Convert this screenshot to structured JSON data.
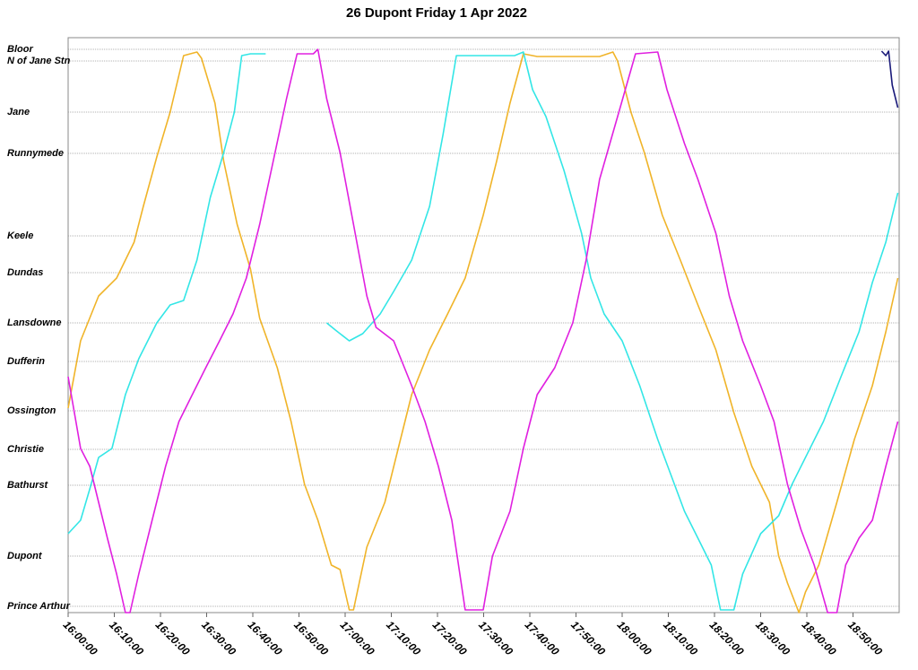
{
  "chart_data": {
    "type": "line",
    "title": "26 Dupont Friday 1 Apr 2022",
    "xlim": [
      0,
      180
    ],
    "xticks": [
      {
        "value": 0,
        "label": "16:00:00"
      },
      {
        "value": 10,
        "label": "16:10:00"
      },
      {
        "value": 20,
        "label": "16:20:00"
      },
      {
        "value": 30,
        "label": "16:30:00"
      },
      {
        "value": 40,
        "label": "16:40:00"
      },
      {
        "value": 50,
        "label": "16:50:00"
      },
      {
        "value": 60,
        "label": "17:00:00"
      },
      {
        "value": 70,
        "label": "17:10:00"
      },
      {
        "value": 80,
        "label": "17:20:00"
      },
      {
        "value": 90,
        "label": "17:30:00"
      },
      {
        "value": 100,
        "label": "17:40:00"
      },
      {
        "value": 110,
        "label": "17:50:00"
      },
      {
        "value": 120,
        "label": "18:00:00"
      },
      {
        "value": 130,
        "label": "18:10:00"
      },
      {
        "value": 140,
        "label": "18:20:00"
      },
      {
        "value": 150,
        "label": "18:30:00"
      },
      {
        "value": 160,
        "label": "18:40:00"
      },
      {
        "value": 170,
        "label": "18:50:00"
      }
    ],
    "ylim": [
      -7,
      634
    ],
    "yticks": [
      {
        "value": 621,
        "label": "Bloor"
      },
      {
        "value": 608,
        "label": "N of Jane Stn"
      },
      {
        "value": 551,
        "label": "Jane"
      },
      {
        "value": 505,
        "label": "Runnymede"
      },
      {
        "value": 413,
        "label": "Keele"
      },
      {
        "value": 372,
        "label": "Dundas"
      },
      {
        "value": 316,
        "label": "Lansdowne"
      },
      {
        "value": 273,
        "label": "Dufferin"
      },
      {
        "value": 218,
        "label": "Ossington"
      },
      {
        "value": 175,
        "label": "Christie"
      },
      {
        "value": 135,
        "label": "Bathurst"
      },
      {
        "value": 56,
        "label": "Dupont"
      },
      {
        "value": 0,
        "label": "Prince Arthur"
      }
    ],
    "grid": true,
    "series": [
      {
        "color": "#f0b429",
        "x": [
          0,
          2.7,
          6.6,
          10.5,
          14.3,
          16.3,
          19.2,
          22.1,
          25,
          27.9,
          28.9,
          31.8,
          33.7,
          36.6,
          39.5,
          41.5,
          45.3,
          48.3,
          51.2,
          54.1,
          57,
          58.9,
          60.9,
          61.8,
          64.7,
          68.6,
          71.5,
          74.4,
          78.3,
          82.2,
          86,
          89.9,
          92.8,
          95.7,
          98.6,
          101.6,
          115.1,
          118,
          119,
          121.9,
          124.8,
          128.7,
          132.6,
          136.4,
          140.3,
          144.2,
          148.1,
          151.9,
          153.9,
          155.8,
          158.3,
          159.7,
          162.6,
          166.5,
          170.3,
          174.2,
          177.1,
          179.7
        ],
        "values": [
          221,
          296,
          346,
          366,
          406,
          446,
          501,
          551,
          614,
          618,
          611,
          561,
          496,
          426,
          376,
          321,
          266,
          206,
          136,
          96,
          46,
          41,
          -4,
          -4,
          66,
          116,
          176,
          236,
          286,
          326,
          366,
          436,
          496,
          561,
          616,
          613,
          613,
          618,
          608,
          551,
          506,
          436,
          386,
          336,
          286,
          216,
          156,
          116,
          56,
          26,
          -7,
          16,
          46,
          116,
          186,
          246,
          306,
          366
        ]
      },
      {
        "color": "#33e6e6",
        "x": [
          0,
          2.7,
          4.7,
          6.6,
          9.5,
          12.4,
          15.3,
          19.2,
          22.1,
          25,
          27.9,
          30.8,
          33.7,
          36,
          37.6,
          39.5,
          42.8,
          null,
          56,
          57.9,
          60.9,
          63.8,
          67.6,
          70.5,
          74.4,
          78.3,
          81.2,
          84.1,
          96.7,
          98.6,
          100.6,
          103.5,
          107.4,
          111.2,
          113.2,
          116.1,
          120,
          123.8,
          127.7,
          130.6,
          133.5,
          136.4,
          139.3,
          141.3,
          144.2,
          146.1,
          150,
          153.9,
          156.8,
          159.7,
          163.6,
          167.4,
          171.3,
          174.2,
          177.1,
          179.7
        ],
        "values": [
          81,
          96,
          131,
          166,
          176,
          236,
          276,
          316,
          336,
          341,
          386,
          456,
          506,
          551,
          614,
          616,
          616,
          null,
          316,
          308,
          296,
          304,
          326,
          351,
          386,
          446,
          526,
          614,
          614,
          618,
          576,
          546,
          486,
          416,
          366,
          326,
          296,
          246,
          186,
          146,
          106,
          76,
          46,
          -4,
          -4,
          36,
          81,
          101,
          136,
          166,
          206,
          256,
          306,
          361,
          406,
          461
        ]
      },
      {
        "color": "#e020e0",
        "x": [
          0,
          2.7,
          4.7,
          6.6,
          8.5,
          10.5,
          12.4,
          13.4,
          15.3,
          18.2,
          21.1,
          24,
          26.9,
          29.8,
          32.8,
          35.7,
          38.6,
          41.5,
          44.4,
          47.3,
          49.6,
          53.1,
          54.1,
          56,
          58.9,
          61.8,
          64.7,
          66.7,
          70.5,
          74.4,
          77.3,
          80.2,
          83.1,
          86,
          89.9,
          91.9,
          95.7,
          98.6,
          101.6,
          105.4,
          109.3,
          112.2,
          115.1,
          119,
          122.9,
          127.7,
          129.7,
          133.5,
          136.4,
          140.3,
          143.2,
          146.1,
          150,
          152.9,
          155.8,
          158.7,
          161.6,
          164.5,
          166.5,
          168.4,
          171.3,
          174.2,
          177.1,
          179.7
        ],
        "values": [
          256,
          176,
          156,
          116,
          76,
          36,
          -7,
          -7,
          36,
          96,
          156,
          206,
          236,
          266,
          296,
          326,
          366,
          426,
          496,
          566,
          616,
          616,
          621,
          566,
          506,
          426,
          346,
          311,
          296,
          246,
          206,
          156,
          96,
          -4,
          -4,
          56,
          106,
          176,
          236,
          266,
          316,
          386,
          476,
          546,
          616,
          618,
          576,
          516,
          476,
          416,
          346,
          296,
          246,
          206,
          136,
          86,
          46,
          -7,
          -7,
          46,
          76,
          96,
          156,
          206
        ]
      },
      {
        "color": "#1a1a7a",
        "x": [
          176.2,
          177.1,
          177.7,
          178.5,
          179.7
        ],
        "values": [
          619,
          614,
          619,
          581,
          556
        ]
      }
    ]
  }
}
